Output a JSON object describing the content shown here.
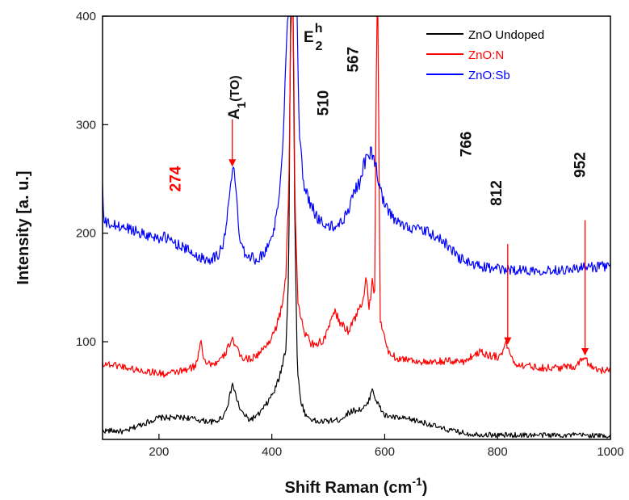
{
  "chart_data": {
    "type": "line",
    "xlabel": "Shift Raman (cm",
    "xlabel_sup": "-1",
    "xlabel_close": ")",
    "ylabel": "Intensity [a. u.]",
    "xlim": [
      100,
      1000
    ],
    "ylim": [
      10,
      400
    ],
    "xticks": [
      200,
      400,
      600,
      800,
      1000
    ],
    "yticks": [
      100,
      200,
      300,
      400
    ],
    "legend_position": "top-right",
    "series": [
      {
        "name": "ZnO Undoped",
        "color": "#000000",
        "points": [
          [
            100,
            18
          ],
          [
            120,
            18
          ],
          [
            140,
            17
          ],
          [
            160,
            22
          ],
          [
            180,
            26
          ],
          [
            200,
            30
          ],
          [
            220,
            30
          ],
          [
            250,
            30
          ],
          [
            280,
            27
          ],
          [
            300,
            26
          ],
          [
            315,
            32
          ],
          [
            325,
            48
          ],
          [
            330,
            62
          ],
          [
            335,
            52
          ],
          [
            345,
            36
          ],
          [
            360,
            28
          ],
          [
            375,
            32
          ],
          [
            390,
            42
          ],
          [
            405,
            55
          ],
          [
            415,
            70
          ],
          [
            425,
            95
          ],
          [
            430,
            170
          ],
          [
            433,
            400
          ],
          [
            438,
            400
          ],
          [
            440,
            240
          ],
          [
            445,
            80
          ],
          [
            450,
            48
          ],
          [
            460,
            32
          ],
          [
            480,
            26
          ],
          [
            500,
            27
          ],
          [
            520,
            28
          ],
          [
            540,
            36
          ],
          [
            560,
            38
          ],
          [
            570,
            42
          ],
          [
            578,
            58
          ],
          [
            585,
            45
          ],
          [
            600,
            32
          ],
          [
            620,
            30
          ],
          [
            650,
            28
          ],
          [
            680,
            24
          ],
          [
            700,
            20
          ],
          [
            750,
            15
          ],
          [
            800,
            14
          ],
          [
            850,
            14
          ],
          [
            900,
            14
          ],
          [
            950,
            14
          ],
          [
            1000,
            13
          ]
        ]
      },
      {
        "name": "ZnO:N",
        "color": "#ff0000",
        "points": [
          [
            100,
            80
          ],
          [
            130,
            78
          ],
          [
            160,
            74
          ],
          [
            190,
            72
          ],
          [
            210,
            70
          ],
          [
            230,
            72
          ],
          [
            250,
            74
          ],
          [
            265,
            78
          ],
          [
            270,
            88
          ],
          [
            274,
            105
          ],
          [
            278,
            88
          ],
          [
            285,
            80
          ],
          [
            300,
            80
          ],
          [
            315,
            86
          ],
          [
            325,
            98
          ],
          [
            330,
            104
          ],
          [
            335,
            96
          ],
          [
            345,
            86
          ],
          [
            360,
            84
          ],
          [
            375,
            88
          ],
          [
            390,
            96
          ],
          [
            405,
            110
          ],
          [
            415,
            125
          ],
          [
            425,
            160
          ],
          [
            430,
            240
          ],
          [
            434,
            400
          ],
          [
            438,
            400
          ],
          [
            441,
            230
          ],
          [
            446,
            140
          ],
          [
            455,
            112
          ],
          [
            470,
            98
          ],
          [
            490,
            100
          ],
          [
            500,
            110
          ],
          [
            510,
            130
          ],
          [
            520,
            118
          ],
          [
            535,
            110
          ],
          [
            550,
            125
          ],
          [
            560,
            135
          ],
          [
            568,
            160
          ],
          [
            572,
            130
          ],
          [
            578,
            155
          ],
          [
            582,
            135
          ],
          [
            586,
            400
          ],
          [
            588,
            400
          ],
          [
            592,
            120
          ],
          [
            605,
            92
          ],
          [
            620,
            85
          ],
          [
            640,
            84
          ],
          [
            660,
            82
          ],
          [
            680,
            80
          ],
          [
            700,
            82
          ],
          [
            740,
            82
          ],
          [
            760,
            88
          ],
          [
            770,
            92
          ],
          [
            780,
            88
          ],
          [
            800,
            86
          ],
          [
            810,
            92
          ],
          [
            815,
            100
          ],
          [
            820,
            92
          ],
          [
            830,
            80
          ],
          [
            850,
            78
          ],
          [
            880,
            76
          ],
          [
            910,
            76
          ],
          [
            940,
            78
          ],
          [
            950,
            84
          ],
          [
            955,
            88
          ],
          [
            960,
            80
          ],
          [
            980,
            74
          ],
          [
            1000,
            73
          ]
        ]
      },
      {
        "name": "ZnO:Sb",
        "color": "#0000ff",
        "points": [
          [
            100,
            245
          ],
          [
            102,
            210
          ],
          [
            120,
            207
          ],
          [
            150,
            204
          ],
          [
            180,
            198
          ],
          [
            200,
            196
          ],
          [
            210,
            196
          ],
          [
            240,
            188
          ],
          [
            270,
            178
          ],
          [
            290,
            176
          ],
          [
            305,
            180
          ],
          [
            315,
            192
          ],
          [
            322,
            220
          ],
          [
            330,
            260
          ],
          [
            335,
            250
          ],
          [
            342,
            200
          ],
          [
            352,
            182
          ],
          [
            370,
            176
          ],
          [
            385,
            180
          ],
          [
            400,
            196
          ],
          [
            412,
            225
          ],
          [
            420,
            290
          ],
          [
            428,
            400
          ],
          [
            445,
            400
          ],
          [
            448,
            300
          ],
          [
            455,
            250
          ],
          [
            465,
            230
          ],
          [
            480,
            215
          ],
          [
            500,
            205
          ],
          [
            520,
            208
          ],
          [
            535,
            220
          ],
          [
            545,
            240
          ],
          [
            555,
            245
          ],
          [
            562,
            262
          ],
          [
            570,
            270
          ],
          [
            576,
            275
          ],
          [
            582,
            268
          ],
          [
            590,
            245
          ],
          [
            600,
            225
          ],
          [
            620,
            210
          ],
          [
            650,
            205
          ],
          [
            680,
            200
          ],
          [
            710,
            190
          ],
          [
            730,
            178
          ],
          [
            760,
            170
          ],
          [
            800,
            167
          ],
          [
            850,
            166
          ],
          [
            900,
            166
          ],
          [
            950,
            168
          ],
          [
            1000,
            170
          ]
        ]
      }
    ],
    "annotations": [
      {
        "text": "274",
        "x": 238,
        "y": 250,
        "rotate": true,
        "color": "#ff0000"
      },
      {
        "text": "510",
        "x": 500,
        "y": 320,
        "rotate": true,
        "color": "#111111"
      },
      {
        "text": "567",
        "x": 553,
        "y": 360,
        "rotate": true,
        "color": "#111111"
      },
      {
        "text": "766",
        "x": 753,
        "y": 282,
        "rotate": true,
        "color": "#111111"
      },
      {
        "text": "812",
        "x": 807,
        "y": 237,
        "rotate": true,
        "color": "#111111"
      },
      {
        "text": "952",
        "x": 955,
        "y": 263,
        "rotate": true,
        "color": "#111111"
      }
    ],
    "a1_label": {
      "main": "A",
      "sub": "1",
      "paren": "(TO)"
    },
    "e2_label": {
      "main": "E",
      "sup": "h",
      "sub": "2"
    },
    "arrows": [
      {
        "x": 330,
        "y_from": 305,
        "y_to": 262
      },
      {
        "x": 818,
        "y_from": 190,
        "y_to": 98
      },
      {
        "x": 955,
        "y_from": 212,
        "y_to": 88
      }
    ]
  }
}
